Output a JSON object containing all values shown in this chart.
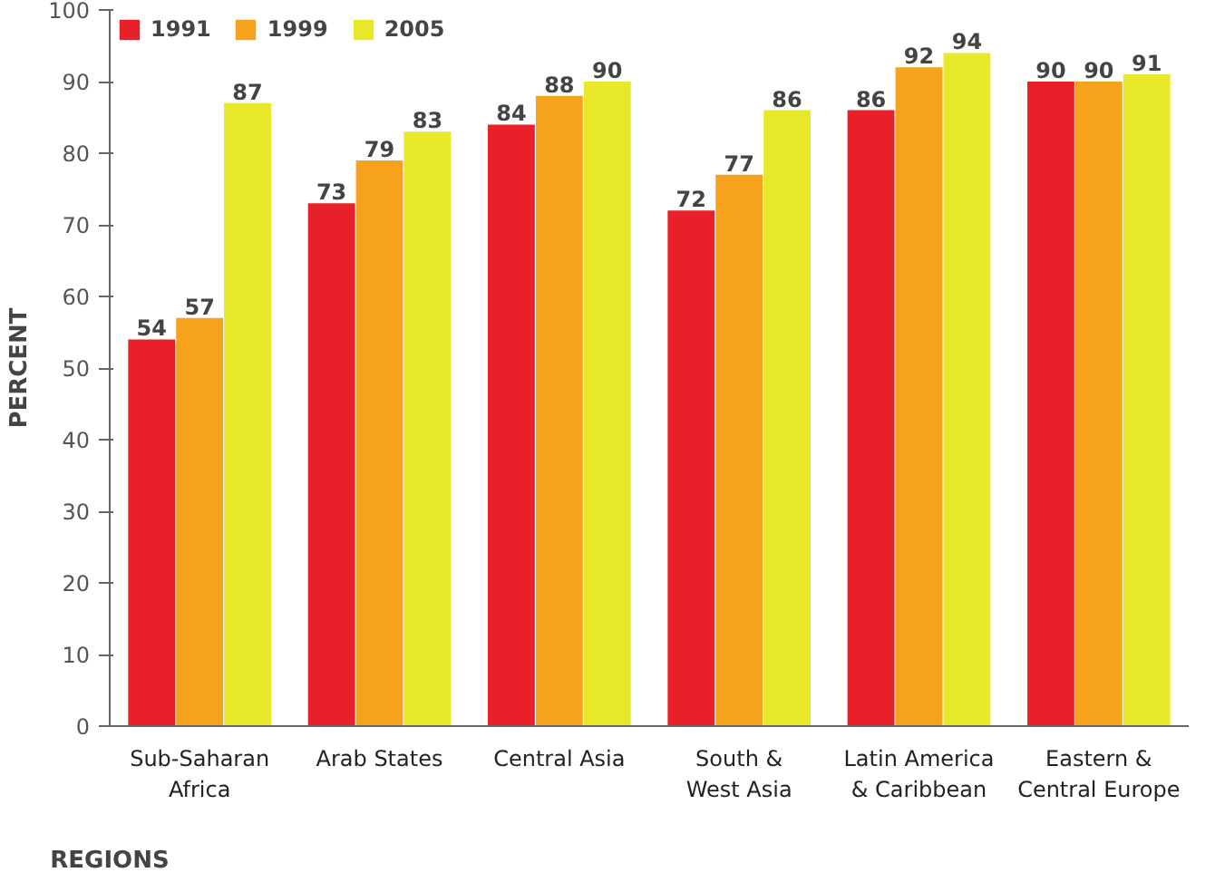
{
  "chart_data": {
    "type": "bar",
    "xlabel": "REGIONS",
    "ylabel": "PERCENT",
    "categories": [
      "Sub-Saharan\nAfrica",
      "Arab States",
      "Central Asia",
      "South &\nWest Asia",
      "Latin America\n& Caribbean",
      "Eastern &\nCentral Europe"
    ],
    "series": [
      {
        "name": "1991",
        "color": "#e8202a",
        "values": [
          54,
          73,
          84,
          72,
          86,
          90
        ]
      },
      {
        "name": "1999",
        "color": "#f7a21c",
        "values": [
          57,
          79,
          88,
          77,
          92,
          90
        ]
      },
      {
        "name": "2005",
        "color": "#e8e82a",
        "values": [
          87,
          83,
          90,
          86,
          94,
          91
        ]
      }
    ],
    "ylim": [
      0,
      100
    ],
    "yticks": [
      0,
      10,
      20,
      30,
      40,
      50,
      60,
      70,
      80,
      90,
      100
    ],
    "data_labels": true,
    "legend": "top left",
    "grid": false
  }
}
